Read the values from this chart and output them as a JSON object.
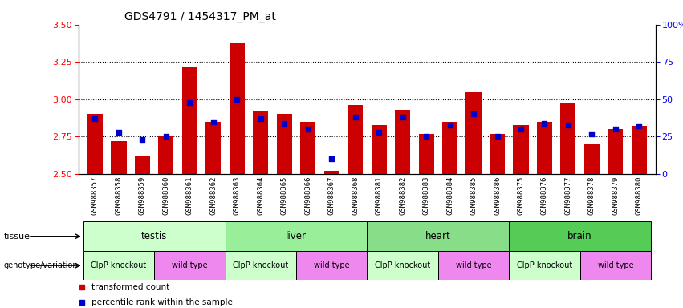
{
  "title": "GDS4791 / 1454317_PM_at",
  "samples": [
    "GSM988357",
    "GSM988358",
    "GSM988359",
    "GSM988360",
    "GSM988361",
    "GSM988362",
    "GSM988363",
    "GSM988364",
    "GSM988365",
    "GSM988366",
    "GSM988367",
    "GSM988368",
    "GSM988381",
    "GSM988382",
    "GSM988383",
    "GSM988384",
    "GSM988385",
    "GSM988386",
    "GSM988375",
    "GSM988376",
    "GSM988377",
    "GSM988378",
    "GSM988379",
    "GSM988380"
  ],
  "bar_values": [
    2.9,
    2.72,
    2.62,
    2.75,
    3.22,
    2.85,
    3.38,
    2.92,
    2.9,
    2.85,
    2.52,
    2.96,
    2.83,
    2.93,
    2.77,
    2.85,
    3.05,
    2.77,
    2.83,
    2.85,
    2.98,
    2.7,
    2.8,
    2.82
  ],
  "dot_values": [
    37,
    28,
    23,
    25,
    48,
    35,
    50,
    37,
    34,
    30,
    10,
    38,
    28,
    38,
    25,
    33,
    40,
    25,
    30,
    34,
    33,
    27,
    30,
    32
  ],
  "ylim": [
    2.5,
    3.5
  ],
  "yticks_left": [
    2.5,
    2.75,
    3.0,
    3.25,
    3.5
  ],
  "yticks_right": [
    0,
    25,
    50,
    75,
    100
  ],
  "bar_color": "#cc0000",
  "dot_color": "#0000cc",
  "bar_bottom": 2.5,
  "tissue_ranges": [
    {
      "label": "testis",
      "start": 0,
      "end": 5,
      "color": "#ccffcc"
    },
    {
      "label": "liver",
      "start": 6,
      "end": 11,
      "color": "#99ee99"
    },
    {
      "label": "heart",
      "start": 12,
      "end": 17,
      "color": "#88dd88"
    },
    {
      "label": "brain",
      "start": 18,
      "end": 23,
      "color": "#55cc55"
    }
  ],
  "geno_ranges": [
    {
      "label": "ClpP knockout",
      "start": 0,
      "end": 2,
      "color": "#ccffcc"
    },
    {
      "label": "wild type",
      "start": 3,
      "end": 5,
      "color": "#ee88ee"
    },
    {
      "label": "ClpP knockout",
      "start": 6,
      "end": 8,
      "color": "#ccffcc"
    },
    {
      "label": "wild type",
      "start": 9,
      "end": 11,
      "color": "#ee88ee"
    },
    {
      "label": "ClpP knockout",
      "start": 12,
      "end": 14,
      "color": "#ccffcc"
    },
    {
      "label": "wild type",
      "start": 15,
      "end": 17,
      "color": "#ee88ee"
    },
    {
      "label": "ClpP knockout",
      "start": 18,
      "end": 20,
      "color": "#ccffcc"
    },
    {
      "label": "wild type",
      "start": 21,
      "end": 23,
      "color": "#ee88ee"
    }
  ],
  "gridlines": [
    2.75,
    3.0,
    3.25
  ],
  "xtick_bg_color": "#cccccc",
  "tissue_label": "tissue",
  "geno_label": "genotype/variation",
  "legend_items": [
    {
      "label": "transformed count",
      "color": "#cc0000"
    },
    {
      "label": "percentile rank within the sample",
      "color": "#0000cc"
    }
  ]
}
